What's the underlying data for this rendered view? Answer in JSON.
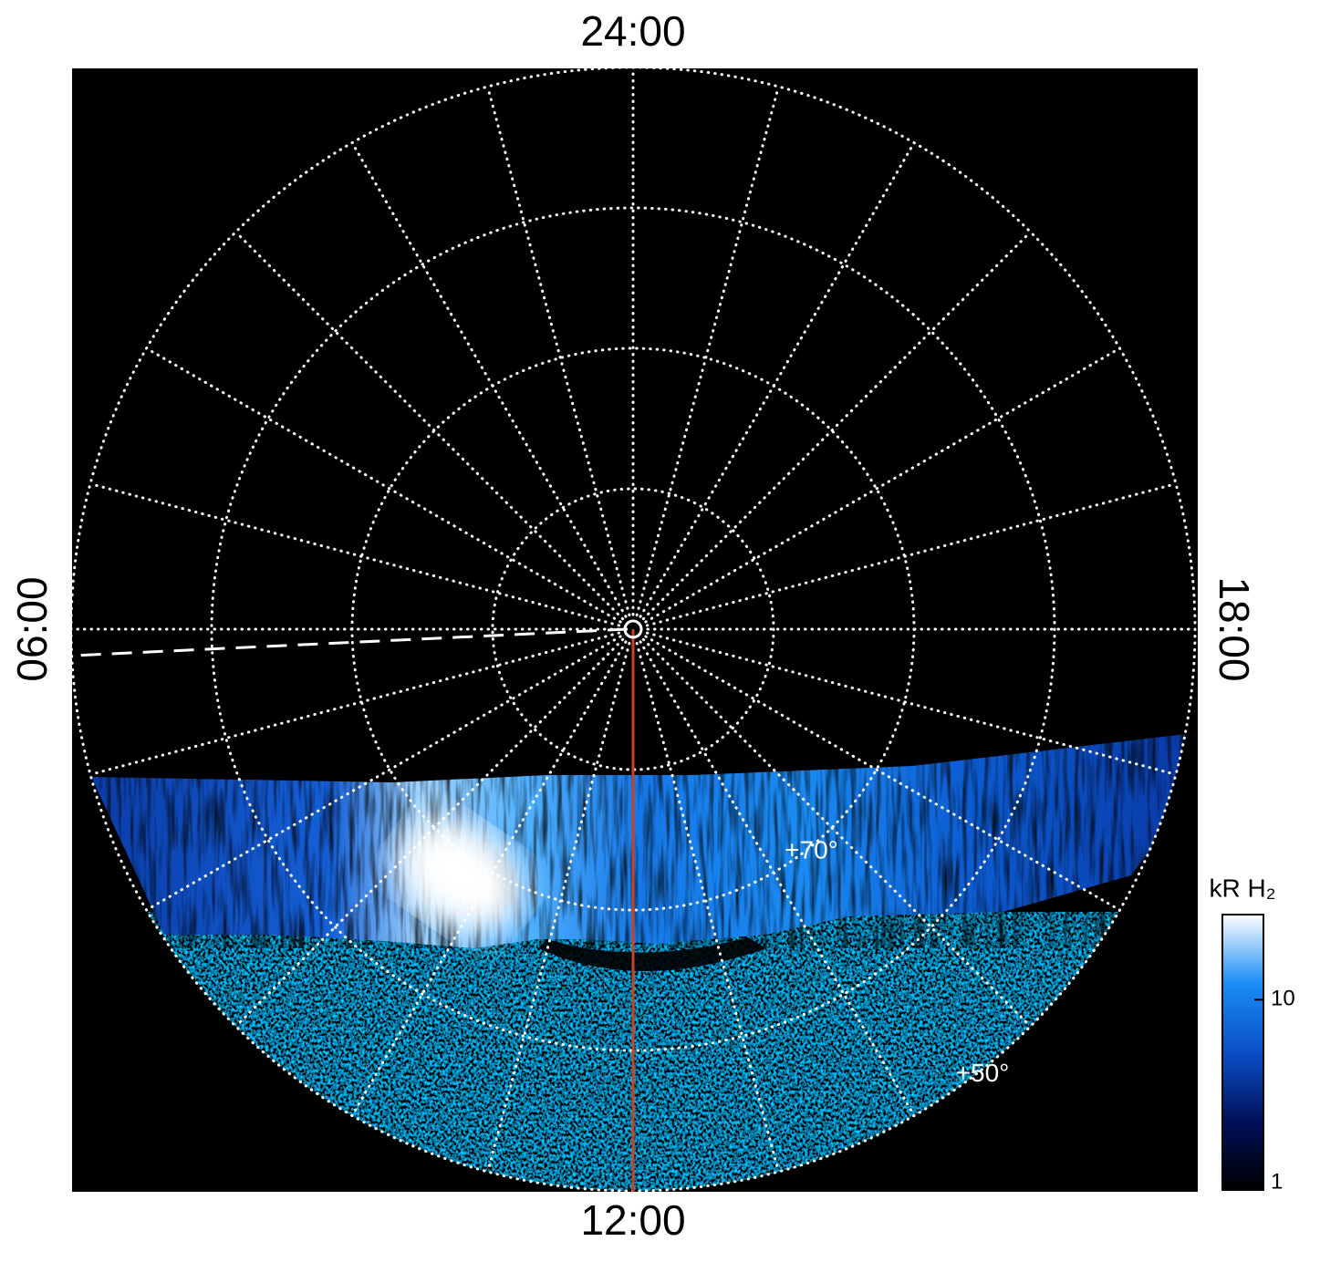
{
  "chart_data": {
    "type": "polar",
    "rlim": [
      90,
      50
    ],
    "lat_grid": [
      50,
      60,
      70,
      80
    ],
    "lt_grid": [
      0,
      1,
      2,
      3,
      4,
      5,
      6,
      7,
      8,
      9,
      10,
      11,
      12,
      13,
      14,
      15,
      16,
      17,
      18,
      19,
      20,
      21,
      22,
      23
    ],
    "lt_ticks": [
      {
        "value": 0,
        "label": "24:00"
      },
      {
        "value": 6,
        "label": "06:00"
      },
      {
        "value": 12,
        "label": "12:00"
      },
      {
        "value": 18,
        "label": "18:00"
      }
    ],
    "lat_ticks": [
      {
        "value": 70,
        "label": "+70°"
      },
      {
        "value": 50,
        "label": "+50°"
      }
    ],
    "grid": true,
    "colorbar": {
      "label": "kR H₂",
      "log": true,
      "clim": [
        1,
        28
      ],
      "ticks": [
        1,
        10
      ],
      "colors": [
        "#000000",
        "#00105a",
        "#0a4fc8",
        "#1a8cf5",
        "#ffffff"
      ]
    }
  }
}
